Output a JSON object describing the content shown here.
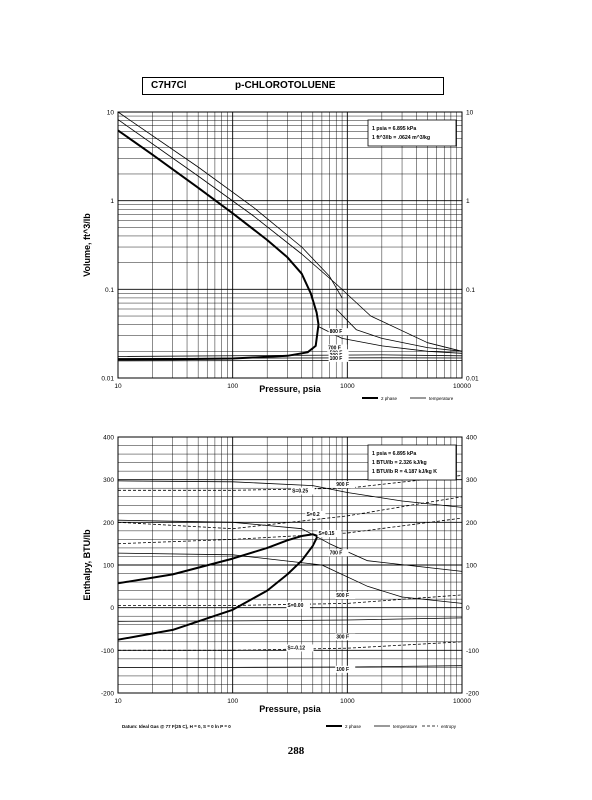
{
  "header": {
    "formula": "C7H7Cl",
    "name": "p-CHLOROTOLUENE"
  },
  "page_number": "288",
  "chart_data": [
    {
      "type": "line",
      "xlabel": "Pressure,  psia",
      "ylabel": "Volume, ft^3/lb",
      "x_scale": "log",
      "y_scale": "log",
      "xlim": [
        10,
        10000
      ],
      "ylim": [
        0.01,
        10
      ],
      "x_ticks": [
        "10",
        "100",
        "1000",
        "10000"
      ],
      "y_ticks": [
        "0.01",
        "0.1",
        "1",
        "10"
      ],
      "grid": true,
      "legend": {
        "position": "bottom-right",
        "entries": [
          "2 phase",
          "temperature"
        ]
      },
      "note_box": {
        "position": "top-right",
        "lines": [
          "1 psia = 6.895 kPa",
          "1 ft^3/lb = .0624 m^3/kg"
        ]
      },
      "series": [
        {
          "role": "2 phase",
          "label": "",
          "x": [
            10,
            20,
            50,
            100,
            200,
            300,
            400,
            480,
            540,
            560
          ],
          "y": [
            6.2,
            3.3,
            1.4,
            0.72,
            0.36,
            0.23,
            0.15,
            0.09,
            0.055,
            0.04
          ]
        },
        {
          "role": "2 phase",
          "label": "",
          "x": [
            10,
            30,
            100,
            300,
            450,
            530,
            560
          ],
          "y": [
            0.0162,
            0.0163,
            0.0166,
            0.0178,
            0.0195,
            0.023,
            0.04
          ]
        },
        {
          "role": "temperature",
          "label": "",
          "x": [
            10,
            50,
            150,
            400,
            800,
            1600,
            5000,
            10000
          ],
          "y": [
            8.2,
            1.9,
            0.68,
            0.25,
            0.115,
            0.05,
            0.025,
            0.02
          ]
        },
        {
          "role": "temperature",
          "label": "",
          "x": [
            10,
            50,
            150,
            400,
            700,
            900
          ],
          "y": [
            10,
            2.4,
            0.85,
            0.3,
            0.14,
            0.08
          ]
        },
        {
          "role": "temperature",
          "label": "800 F",
          "x": [
            800,
            1200,
            2000,
            5000,
            10000
          ],
          "y": [
            0.06,
            0.035,
            0.028,
            0.022,
            0.02
          ]
        },
        {
          "role": "temperature",
          "label": "700 F",
          "x": [
            560,
            900,
            2000,
            5000,
            10000
          ],
          "y": [
            0.038,
            0.028,
            0.023,
            0.02,
            0.019
          ]
        },
        {
          "role": "temperature",
          "label": "500 F",
          "x": [
            10,
            300,
            2000,
            10000
          ],
          "y": [
            0.0175,
            0.018,
            0.0182,
            0.0178
          ]
        },
        {
          "role": "temperature",
          "label": "300 F",
          "x": [
            10,
            300,
            2000,
            10000
          ],
          "y": [
            0.0166,
            0.0168,
            0.0169,
            0.0168
          ]
        },
        {
          "role": "temperature",
          "label": "100 F",
          "x": [
            10,
            300,
            2000,
            10000
          ],
          "y": [
            0.0156,
            0.0157,
            0.0158,
            0.0158
          ]
        }
      ],
      "annotations": [
        "800 F",
        "700 F",
        "500 F",
        "300 F",
        "100 F"
      ]
    },
    {
      "type": "line",
      "xlabel": "Pressure,  psia",
      "ylabel": "Enthalpy, BTU/lb",
      "x_scale": "log",
      "y_scale": "linear",
      "xlim": [
        10,
        10000
      ],
      "ylim": [
        -200,
        400
      ],
      "x_ticks": [
        "10",
        "100",
        "1000",
        "10000"
      ],
      "y_ticks": [
        "-200",
        "-100",
        "0",
        "100",
        "200",
        "300",
        "400"
      ],
      "grid": true,
      "legend": {
        "position": "bottom-right",
        "entries": [
          "2 phase",
          "temperature",
          "entropy"
        ]
      },
      "note_box": {
        "position": "top-right",
        "lines": [
          "1 psia = 6.895 kPa",
          "1 BTU/lb = 2.326 kJ/kg",
          "1 BTU/lb R = 4.187 kJ/kg K"
        ]
      },
      "footnote": "Datum: Ideal Gas @ 77 F(25 C), H = 0, S = 0 ln P = 0",
      "series": [
        {
          "role": "2 phase",
          "label": "",
          "x": [
            10,
            30,
            100,
            200,
            300,
            400,
            500,
            550
          ],
          "y": [
            57,
            78,
            115,
            140,
            158,
            168,
            172,
            168
          ]
        },
        {
          "role": "2 phase",
          "label": "",
          "x": [
            10,
            30,
            100,
            200,
            300,
            400,
            500,
            550
          ],
          "y": [
            -75,
            -52,
            -5,
            40,
            78,
            110,
            145,
            168
          ]
        },
        {
          "role": "temperature",
          "label": "900 F",
          "x": [
            10,
            100,
            500,
            1000,
            3000,
            10000
          ],
          "y": [
            297,
            295,
            286,
            270,
            250,
            235
          ]
        },
        {
          "role": "temperature",
          "label": "700 F",
          "x": [
            10,
            100,
            400,
            700,
            1500,
            10000
          ],
          "y": [
            205,
            200,
            185,
            150,
            110,
            85
          ]
        },
        {
          "role": "temperature",
          "label": "500 F",
          "x": [
            10,
            100,
            600,
            1500,
            3000,
            10000
          ],
          "y": [
            128,
            124,
            100,
            50,
            25,
            10
          ]
        },
        {
          "role": "temperature",
          "label": "300 F",
          "x": [
            10,
            100,
            1000,
            10000
          ],
          "y": [
            -32,
            -31,
            -29,
            -24
          ]
        },
        {
          "role": "temperature",
          "label": "100 F",
          "x": [
            10,
            100,
            1000,
            10000
          ],
          "y": [
            -140,
            -140,
            -139,
            -136
          ]
        },
        {
          "role": "entropy",
          "label": "S=0.25",
          "x": [
            10,
            100,
            1000,
            10000
          ],
          "y": [
            275,
            275,
            280,
            310
          ]
        },
        {
          "role": "entropy",
          "label": "S=0.2",
          "x": [
            10,
            100,
            1000,
            10000
          ],
          "y": [
            200,
            185,
            215,
            260
          ]
        },
        {
          "role": "entropy",
          "label": "S=0.15",
          "x": [
            10,
            100,
            1000,
            10000
          ],
          "y": [
            150,
            160,
            175,
            210
          ]
        },
        {
          "role": "entropy",
          "label": "S=0.00",
          "x": [
            10,
            100,
            1000,
            10000
          ],
          "y": [
            5,
            5,
            10,
            30
          ]
        },
        {
          "role": "entropy",
          "label": "S=-0.12",
          "x": [
            10,
            100,
            1000,
            10000
          ],
          "y": [
            -100,
            -100,
            -95,
            -80
          ]
        }
      ],
      "annotations": [
        "S=0.25",
        "900 F",
        "S=0.2",
        "S=0.15",
        "700 F",
        "500 F",
        "S=0.00",
        "300 F",
        "S=-0.12",
        "100 F"
      ]
    }
  ]
}
